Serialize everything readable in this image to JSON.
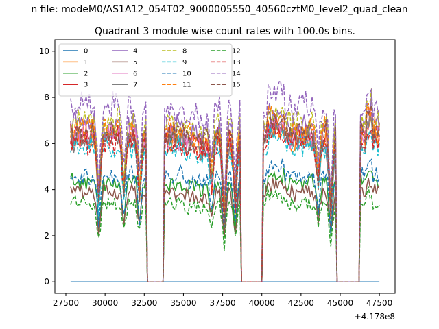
{
  "figure": {
    "suptitle": "n file: modeM0/AS1A12_054T02_9000005550_40560cztM0_level2_quad_clean"
  },
  "chart_data": {
    "type": "line",
    "title": "Quadrant 3 module wise count rates with 100.0s bins.",
    "xlabel": "",
    "ylabel": "",
    "x_offset_label": "+4.178e8",
    "xlim": [
      26800,
      48500
    ],
    "ylim": [
      -0.5,
      10.5
    ],
    "x_ticks": [
      27500,
      30000,
      32500,
      35000,
      37500,
      40000,
      42500,
      45000,
      47500
    ],
    "x_tick_labels": [
      "27500",
      "30000",
      "32500",
      "35000",
      "37500",
      "40000",
      "42500",
      "45000",
      "47500"
    ],
    "y_ticks": [
      0,
      2,
      4,
      6,
      8,
      10
    ],
    "y_tick_labels": [
      "0",
      "2",
      "4",
      "6",
      "8",
      "10"
    ],
    "legend": {
      "location": "upper-left",
      "columns": 4
    },
    "x_range": [
      27800,
      47500
    ],
    "bin_size": 100,
    "gaps": [
      [
        32600,
        33800
      ],
      [
        38600,
        40100
      ],
      [
        44700,
        46300
      ]
    ],
    "series": [
      {
        "name": "0",
        "color": "#1f77b4",
        "dashed": false,
        "level": 0.0
      },
      {
        "name": "1",
        "color": "#ff7f0e",
        "dashed": false,
        "level": 6.2
      },
      {
        "name": "2",
        "color": "#2ca02c",
        "dashed": false,
        "level": 4.3
      },
      {
        "name": "3",
        "color": "#d62728",
        "dashed": false,
        "level": 6.4
      },
      {
        "name": "4",
        "color": "#9467bd",
        "dashed": false,
        "level": 6.8
      },
      {
        "name": "5",
        "color": "#8c564b",
        "dashed": false,
        "level": 3.9
      },
      {
        "name": "6",
        "color": "#e377c2",
        "dashed": false,
        "level": 6.3
      },
      {
        "name": "7",
        "color": "#7f7f7f",
        "dashed": false,
        "level": 6.1
      },
      {
        "name": "8",
        "color": "#bcbd22",
        "dashed": true,
        "level": 6.9
      },
      {
        "name": "9",
        "color": "#17becf",
        "dashed": true,
        "level": 5.8
      },
      {
        "name": "10",
        "color": "#1f77b4",
        "dashed": true,
        "level": 4.6
      },
      {
        "name": "11",
        "color": "#ff7f0e",
        "dashed": true,
        "level": 6.6
      },
      {
        "name": "12",
        "color": "#2ca02c",
        "dashed": true,
        "level": 3.4
      },
      {
        "name": "13",
        "color": "#d62728",
        "dashed": true,
        "level": 6.0
      },
      {
        "name": "14",
        "color": "#9467bd",
        "dashed": true,
        "level": 7.6
      },
      {
        "name": "15",
        "color": "#8c564b",
        "dashed": true,
        "level": 6.5
      }
    ],
    "grid": false
  }
}
